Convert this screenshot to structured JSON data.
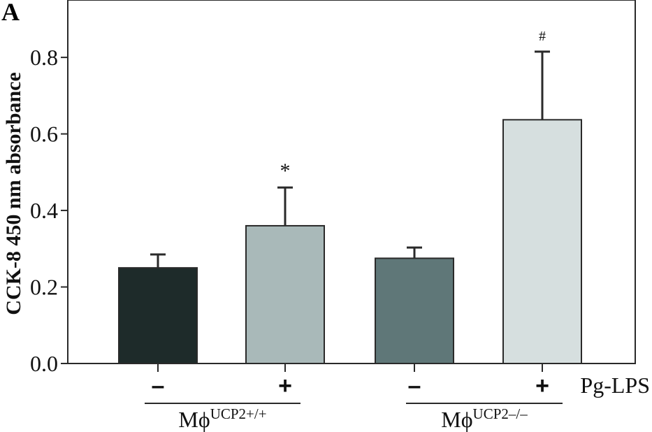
{
  "panel_label": "A",
  "chart_data": {
    "type": "bar",
    "title": "",
    "xlabel": "",
    "ylabel": "CCK-8 450 nm absorbance",
    "ylim": [
      0,
      0.95
    ],
    "yticks": [
      "0.0",
      "0.2",
      "0.4",
      "0.6",
      "0.8"
    ],
    "grid": false,
    "treatment_label": "Pg-LPS",
    "categories": [
      "–",
      "+",
      "–",
      "+"
    ],
    "values": [
      0.25,
      0.36,
      0.275,
      0.637
    ],
    "errors": [
      0.035,
      0.1,
      0.028,
      0.178
    ],
    "annotations": [
      "",
      "*",
      "",
      "#"
    ],
    "colors": [
      "#1e2b2a",
      "#a9b9b9",
      "#5f7778",
      "#d6dfdf"
    ],
    "groups": [
      {
        "name": "Mϕ",
        "superscript": "UCP2+/+",
        "bars": [
          0,
          1
        ]
      },
      {
        "name": "Mϕ",
        "superscript": "UCP2–/–",
        "bars": [
          2,
          3
        ]
      }
    ]
  }
}
